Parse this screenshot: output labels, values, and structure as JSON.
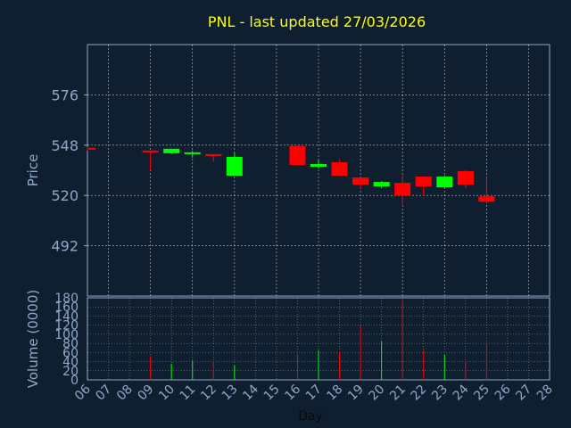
{
  "title": "PNL - last updated 27/03/2026",
  "colors": {
    "background": "#0f1f30",
    "axis_text": "#8fa8c8",
    "title_text": "#ffff00",
    "grid": "#ffffff",
    "frame": "#8fa8c8",
    "up": "#00ff00",
    "down": "#ff0000"
  },
  "chart_data": [
    {
      "type": "candlestick",
      "name": "price",
      "ylabel": "Price",
      "ylim": [
        464,
        604
      ],
      "yticks": [
        492,
        520,
        548,
        576
      ],
      "xlim": [
        6,
        28
      ],
      "x_tick_labels": [
        "06",
        "07",
        "08",
        "09",
        "10",
        "11",
        "12",
        "13",
        "14",
        "15",
        "16",
        "17",
        "18",
        "19",
        "20",
        "21",
        "22",
        "23",
        "24",
        "25",
        "26",
        "27",
        "28"
      ],
      "grid": true,
      "candles": [
        {
          "day": 6,
          "open": 546.5,
          "close": 545.5,
          "high": 547,
          "low": 545
        },
        {
          "day": 9,
          "open": 545.0,
          "close": 544.0,
          "high": 545,
          "low": 534
        },
        {
          "day": 10,
          "open": 543.5,
          "close": 546.0,
          "high": 546,
          "low": 543
        },
        {
          "day": 11,
          "open": 543.0,
          "close": 544.0,
          "high": 545,
          "low": 541
        },
        {
          "day": 12,
          "open": 543.0,
          "close": 542.0,
          "high": 543,
          "low": 539
        },
        {
          "day": 13,
          "open": 531.0,
          "close": 541.5,
          "high": 544,
          "low": 531
        },
        {
          "day": 16,
          "open": 547.5,
          "close": 537.0,
          "high": 548,
          "low": 537
        },
        {
          "day": 17,
          "open": 536.0,
          "close": 537.5,
          "high": 540,
          "low": 535
        },
        {
          "day": 18,
          "open": 538.5,
          "close": 531.0,
          "high": 540,
          "low": 531
        },
        {
          "day": 19,
          "open": 530.0,
          "close": 526.0,
          "high": 530,
          "low": 524
        },
        {
          "day": 20,
          "open": 525.0,
          "close": 527.5,
          "high": 528,
          "low": 524
        },
        {
          "day": 21,
          "open": 527.0,
          "close": 520.0,
          "high": 531,
          "low": 515
        },
        {
          "day": 22,
          "open": 530.5,
          "close": 525.0,
          "high": 531,
          "low": 520
        },
        {
          "day": 23,
          "open": 524.5,
          "close": 530.5,
          "high": 531,
          "low": 524
        },
        {
          "day": 24,
          "open": 533.5,
          "close": 526.0,
          "high": 534,
          "low": 524
        },
        {
          "day": 25,
          "open": 519.5,
          "close": 516.5,
          "high": 530,
          "low": 516
        }
      ]
    },
    {
      "type": "bar",
      "name": "volume",
      "ylabel": "Volume (0000)",
      "xlabel": "Day",
      "ylim": [
        0,
        180
      ],
      "yticks": [
        0,
        20,
        40,
        60,
        80,
        100,
        120,
        140,
        160,
        180
      ],
      "bars": [
        {
          "day": 9,
          "value": 52,
          "direction": "down"
        },
        {
          "day": 10,
          "value": 35,
          "direction": "up"
        },
        {
          "day": 11,
          "value": 42,
          "direction": "up"
        },
        {
          "day": 12,
          "value": 40,
          "direction": "down"
        },
        {
          "day": 13,
          "value": 32,
          "direction": "up"
        },
        {
          "day": 16,
          "value": 55,
          "direction": "down"
        },
        {
          "day": 17,
          "value": 65,
          "direction": "up"
        },
        {
          "day": 18,
          "value": 62,
          "direction": "down"
        },
        {
          "day": 19,
          "value": 120,
          "direction": "down"
        },
        {
          "day": 20,
          "value": 85,
          "direction": "up"
        },
        {
          "day": 21,
          "value": 175,
          "direction": "down"
        },
        {
          "day": 22,
          "value": 65,
          "direction": "down"
        },
        {
          "day": 23,
          "value": 55,
          "direction": "up"
        },
        {
          "day": 24,
          "value": 40,
          "direction": "down"
        },
        {
          "day": 25,
          "value": 82,
          "direction": "down"
        }
      ]
    }
  ]
}
